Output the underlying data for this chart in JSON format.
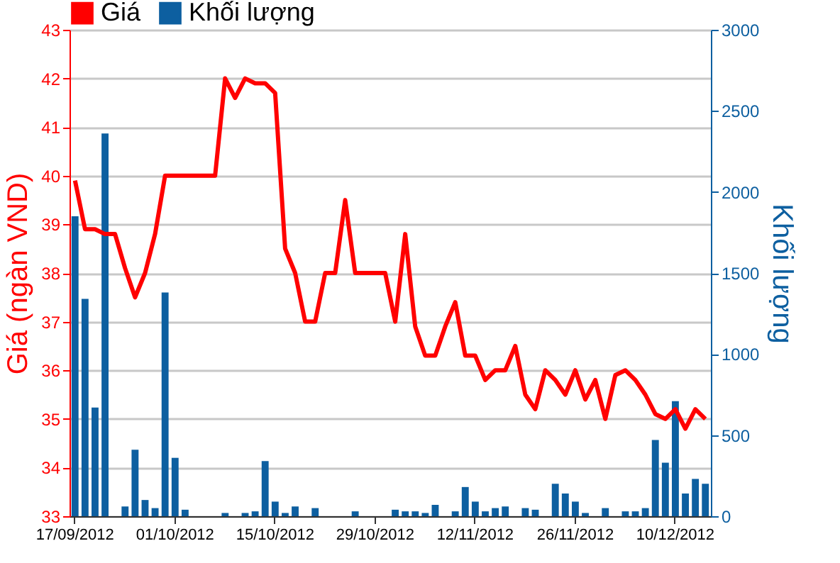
{
  "chart_data": {
    "type": "bar",
    "categories": [
      "17/09/2012",
      null,
      null,
      null,
      null,
      null,
      null,
      null,
      null,
      null,
      "01/10/2012",
      null,
      null,
      null,
      null,
      null,
      null,
      null,
      null,
      null,
      "15/10/2012",
      null,
      null,
      null,
      null,
      null,
      null,
      null,
      null,
      null,
      "29/10/2012",
      null,
      null,
      null,
      null,
      null,
      null,
      null,
      null,
      null,
      "12/11/2012",
      null,
      null,
      null,
      null,
      null,
      null,
      null,
      null,
      null,
      "26/11/2012",
      null,
      null,
      null,
      null,
      null,
      null,
      null,
      null,
      null,
      "10/12/2012",
      null,
      null,
      null
    ],
    "ylabel": "Giá (ngàn VND)",
    "y2label": "Khối lượng",
    "ylim": [
      33,
      43
    ],
    "yticks": [
      33,
      34,
      35,
      36,
      37,
      38,
      39,
      40,
      41,
      42,
      43
    ],
    "y2lim": [
      0,
      3000
    ],
    "y2ticks": [
      0,
      500,
      1000,
      1500,
      2000,
      2500,
      3000
    ],
    "grid": "y",
    "legend": "top left",
    "series": [
      {
        "name": "Giá",
        "type": "line",
        "axis": "y",
        "color": "#ff0000",
        "values": [
          39.9,
          38.9,
          38.9,
          38.8,
          38.8,
          38.1,
          37.5,
          38.0,
          38.8,
          40.0,
          40.0,
          40.0,
          40.0,
          40.0,
          40.0,
          42.0,
          41.6,
          42.0,
          41.9,
          41.9,
          41.7,
          38.5,
          38.0,
          37.0,
          37.0,
          38.0,
          38.0,
          39.5,
          38.0,
          38.0,
          38.0,
          38.0,
          37.0,
          38.8,
          36.9,
          36.3,
          36.3,
          36.9,
          37.4,
          36.3,
          36.3,
          35.8,
          36.0,
          36.0,
          36.5,
          35.5,
          35.2,
          36.0,
          35.8,
          35.5,
          36.0,
          35.4,
          35.8,
          35.0,
          35.9,
          36.0,
          35.8,
          35.5,
          35.1,
          35.0,
          35.2,
          34.8,
          35.2,
          35.0
        ]
      },
      {
        "name": "Khối lượng",
        "axis": "y2",
        "color": "#0d5fa0",
        "values": [
          1850,
          1340,
          670,
          2360,
          0,
          60,
          410,
          100,
          50,
          1380,
          360,
          40,
          0,
          0,
          0,
          20,
          0,
          20,
          30,
          340,
          90,
          20,
          60,
          0,
          50,
          0,
          0,
          0,
          30,
          0,
          0,
          0,
          40,
          30,
          30,
          20,
          70,
          0,
          30,
          180,
          90,
          30,
          50,
          60,
          0,
          50,
          40,
          0,
          200,
          140,
          90,
          20,
          0,
          50,
          0,
          30,
          30,
          50,
          470,
          330,
          710,
          140,
          230,
          200
        ]
      }
    ]
  }
}
